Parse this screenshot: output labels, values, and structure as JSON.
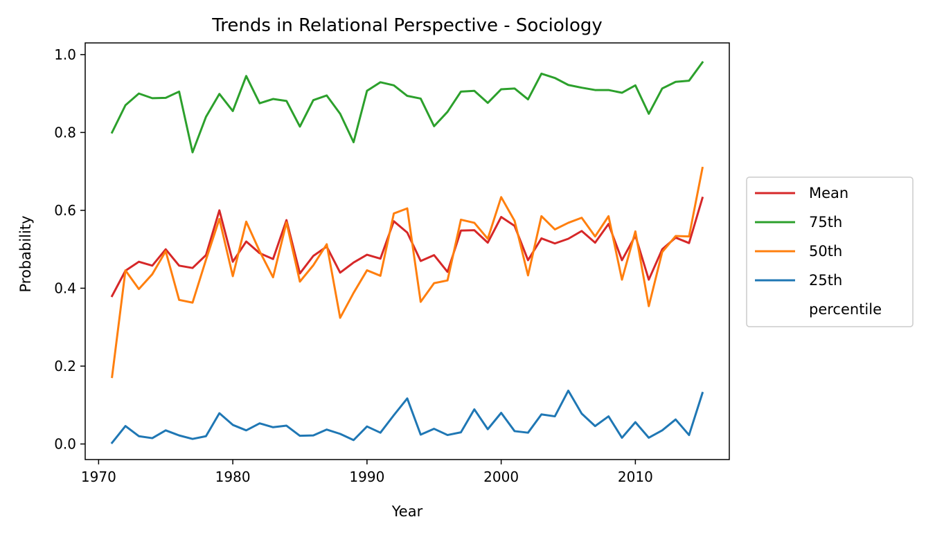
{
  "chart_data": {
    "type": "line",
    "title": "Trends in Relational Perspective - Sociology",
    "xlabel": "Year",
    "ylabel": "Probability",
    "xlim": [
      1969,
      2017
    ],
    "ylim": [
      -0.04,
      1.03
    ],
    "xticks": [
      1970,
      1980,
      1990,
      2000,
      2010
    ],
    "xtick_labels": [
      "1970",
      "1980",
      "1990",
      "2000",
      "2010"
    ],
    "yticks": [
      0.0,
      0.2,
      0.4,
      0.6,
      0.8,
      1.0
    ],
    "ytick_labels": [
      "0.0",
      "0.2",
      "0.4",
      "0.6",
      "0.8",
      "1.0"
    ],
    "grid": false,
    "legend_position": "right, outside",
    "legend_entries": [
      "Mean",
      "75th",
      "50th",
      "25th",
      "percentile"
    ],
    "x": [
      1971,
      1972,
      1973,
      1974,
      1975,
      1976,
      1977,
      1978,
      1979,
      1980,
      1981,
      1982,
      1983,
      1984,
      1985,
      1986,
      1987,
      1988,
      1989,
      1990,
      1991,
      1992,
      1993,
      1994,
      1995,
      1996,
      1997,
      1998,
      1999,
      2000,
      2001,
      2002,
      2003,
      2004,
      2005,
      2006,
      2007,
      2008,
      2009,
      2010,
      2011,
      2012,
      2013,
      2014,
      2015
    ],
    "series": [
      {
        "name": "Mean",
        "color": "#d62728",
        "values": [
          0.38,
          0.445,
          0.468,
          0.458,
          0.5,
          0.458,
          0.452,
          0.485,
          0.6,
          0.468,
          0.52,
          0.49,
          0.475,
          0.575,
          0.438,
          0.483,
          0.507,
          0.44,
          0.466,
          0.486,
          0.476,
          0.572,
          0.543,
          0.47,
          0.485,
          0.442,
          0.548,
          0.549,
          0.517,
          0.583,
          0.56,
          0.472,
          0.528,
          0.515,
          0.527,
          0.547,
          0.517,
          0.565,
          0.472,
          0.535,
          0.422,
          0.5,
          0.53,
          0.516,
          0.632
        ]
      },
      {
        "name": "75th",
        "color": "#2ca02c",
        "values": [
          0.8,
          0.87,
          0.9,
          0.888,
          0.889,
          0.905,
          0.749,
          0.84,
          0.899,
          0.855,
          0.945,
          0.875,
          0.886,
          0.881,
          0.815,
          0.883,
          0.895,
          0.848,
          0.775,
          0.907,
          0.929,
          0.921,
          0.894,
          0.887,
          0.816,
          0.853,
          0.905,
          0.907,
          0.876,
          0.911,
          0.913,
          0.885,
          0.951,
          0.94,
          0.922,
          0.915,
          0.909,
          0.909,
          0.902,
          0.921,
          0.848,
          0.913,
          0.93,
          0.933,
          0.98
        ]
      },
      {
        "name": "50th",
        "color": "#ff7f0e",
        "values": [
          0.172,
          0.446,
          0.398,
          0.436,
          0.495,
          0.37,
          0.363,
          0.473,
          0.578,
          0.431,
          0.571,
          0.495,
          0.428,
          0.569,
          0.417,
          0.459,
          0.513,
          0.324,
          0.388,
          0.446,
          0.432,
          0.592,
          0.605,
          0.365,
          0.413,
          0.42,
          0.576,
          0.568,
          0.527,
          0.634,
          0.573,
          0.433,
          0.585,
          0.551,
          0.568,
          0.581,
          0.533,
          0.585,
          0.422,
          0.546,
          0.354,
          0.493,
          0.534,
          0.533,
          0.709
        ]
      },
      {
        "name": "25th",
        "color": "#1f77b4",
        "values": [
          0.003,
          0.046,
          0.02,
          0.015,
          0.035,
          0.022,
          0.013,
          0.02,
          0.079,
          0.049,
          0.035,
          0.053,
          0.043,
          0.047,
          0.021,
          0.022,
          0.037,
          0.026,
          0.01,
          0.045,
          0.029,
          0.074,
          0.117,
          0.024,
          0.039,
          0.023,
          0.03,
          0.089,
          0.038,
          0.08,
          0.033,
          0.029,
          0.076,
          0.071,
          0.137,
          0.078,
          0.046,
          0.071,
          0.016,
          0.056,
          0.016,
          0.035,
          0.063,
          0.023,
          0.131
        ]
      }
    ]
  }
}
